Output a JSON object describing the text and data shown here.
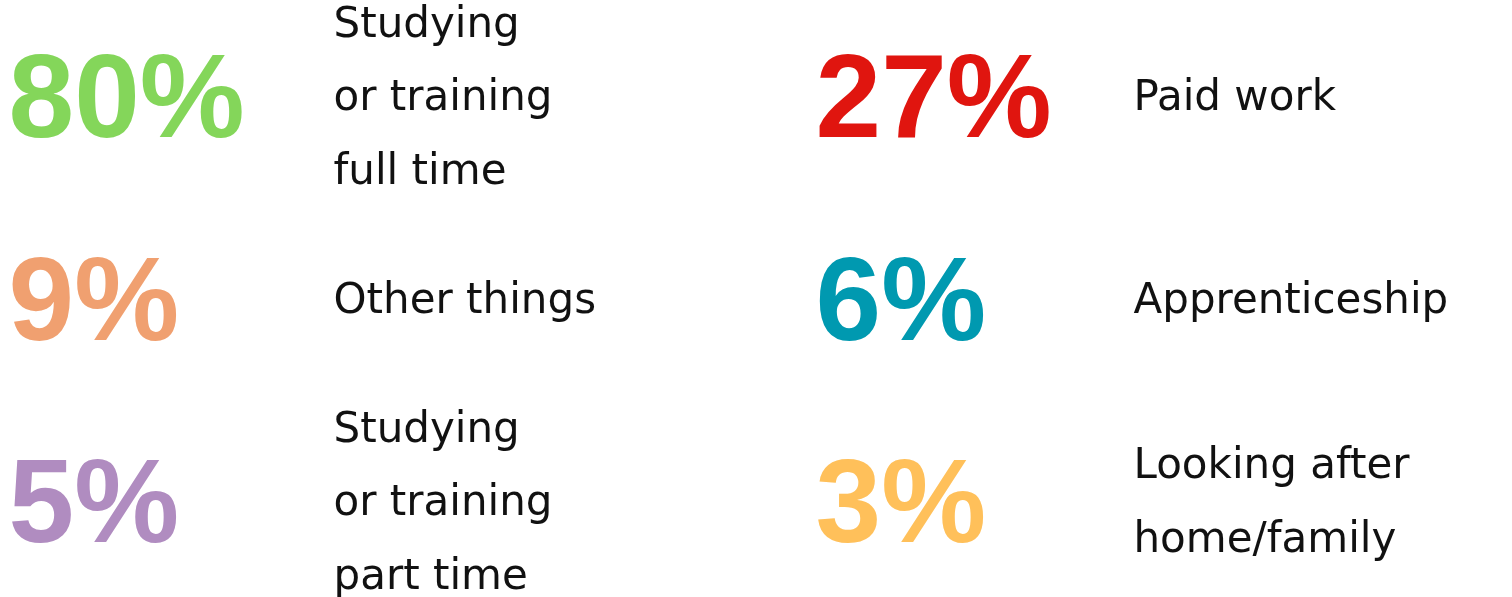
{
  "chart_data": {
    "type": "other",
    "categories": [
      "Studying\nor training\nfull time",
      "Paid work",
      "Other things",
      "Apprenticeship",
      "Studying\nor training\npart time",
      "Looking after\nhome/family"
    ],
    "values": [
      80,
      27,
      9,
      6,
      5,
      3
    ],
    "value_labels": [
      "80%",
      "27%",
      "9%",
      "6%",
      "5%",
      "3%"
    ],
    "colors": [
      "#84d65a",
      "#e0150f",
      "#f0a070",
      "#0099b0",
      "#b08cc0",
      "#ffc05a"
    ]
  }
}
